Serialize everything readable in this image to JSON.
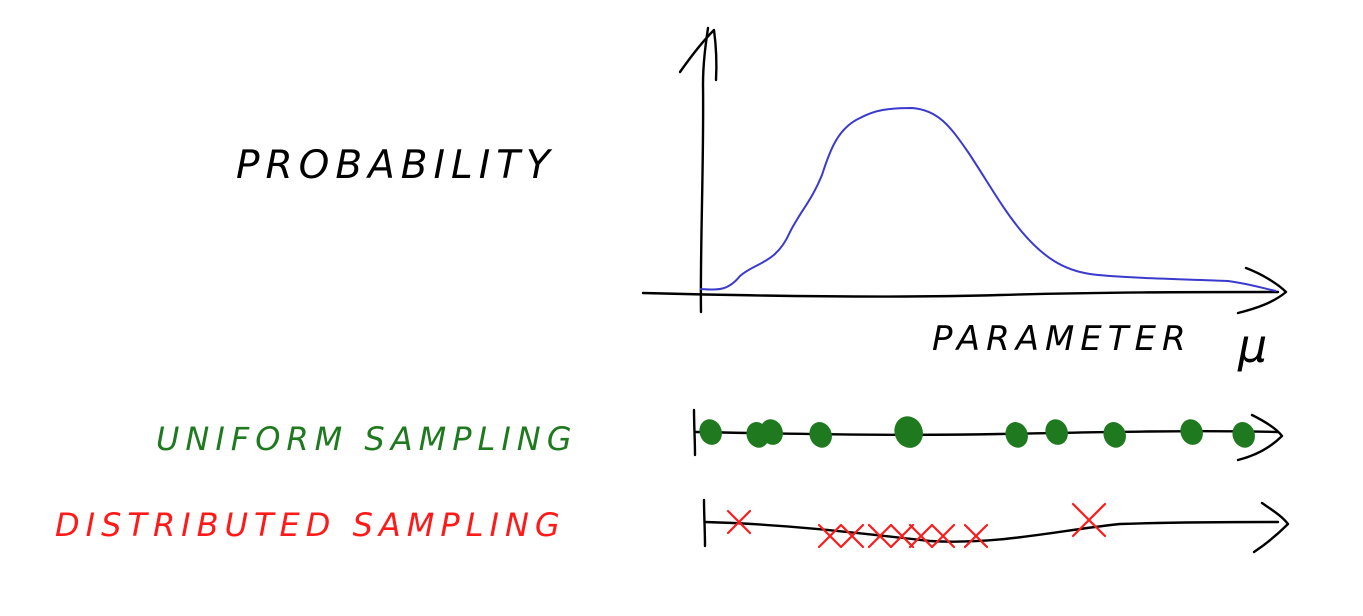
{
  "diagram": {
    "y_label": "PROBABILITY",
    "x_label": "PARAMETER",
    "x_symbol": "μ",
    "uniform_label": "UNIFORM SAMPLING",
    "distributed_label": "DISTRIBUTED SAMPLING",
    "uniform_sample_count": 10,
    "distributed_sample_count": 9
  },
  "colors": {
    "ink": "#000000",
    "curve": "#3a3acc",
    "uniform": "#1f7a1f",
    "distributed": "#ff1a1a"
  }
}
